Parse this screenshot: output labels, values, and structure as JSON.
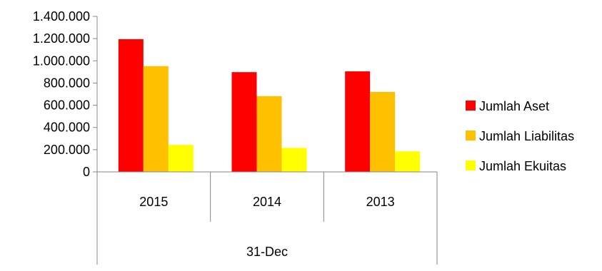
{
  "chart_data": {
    "type": "bar",
    "categories": [
      "2015",
      "2014",
      "2013"
    ],
    "group_label": "31-Dec",
    "series": [
      {
        "name": "Jumlah Aset",
        "color": "#ff0000",
        "values": [
          1195000,
          898000,
          905000
        ]
      },
      {
        "name": "Jumlah Liabilitas",
        "color": "#ffc000",
        "values": [
          952000,
          682000,
          720000
        ]
      },
      {
        "name": "Jumlah Ekuitas",
        "color": "#ffff00",
        "values": [
          243000,
          216000,
          185000
        ]
      }
    ],
    "y_ticks": [
      0,
      200000,
      400000,
      600000,
      800000,
      1000000,
      1200000,
      1400000
    ],
    "y_tick_labels": [
      "0",
      "200.000",
      "400.000",
      "600.000",
      "800.000",
      "1.000.000",
      "1.200.000",
      "1.400.000"
    ],
    "ylim": [
      0,
      1400000
    ],
    "grid": false,
    "legend_position": "right",
    "title": "",
    "xlabel": "",
    "ylabel": ""
  }
}
